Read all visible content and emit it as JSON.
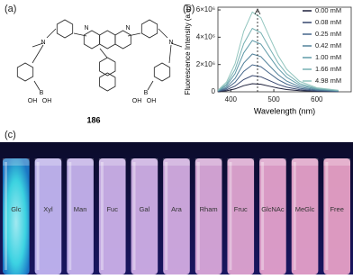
{
  "panels": {
    "a": "(a)",
    "b": "(b)",
    "c": "(c)"
  },
  "structure": {
    "compound": "186",
    "atoms": [
      "N",
      "N",
      "N",
      "N",
      "B",
      "B",
      "OH",
      "OH",
      "OH",
      "OH"
    ]
  },
  "chart_data": {
    "type": "line",
    "xlabel": "Wavelength (nm)",
    "ylabel": "Fluorescence Intensity (a.u.)",
    "x": [
      370,
      390,
      410,
      430,
      450,
      470,
      490,
      510,
      530,
      560,
      600,
      650
    ],
    "xlim": [
      370,
      680
    ],
    "ylim": [
      0,
      6200000
    ],
    "xticks": [
      400,
      500,
      600
    ],
    "yticks": [
      0,
      {
        "value": 2000000,
        "label": "2×10⁶"
      },
      {
        "value": 4000000,
        "label": "4×10⁶"
      },
      {
        "value": 6000000,
        "label": "6×10⁶"
      }
    ],
    "series": [
      {
        "name": "0.00 mM",
        "color": "#1c1f3a",
        "values": [
          12000,
          72000,
          210000,
          450000,
          594000,
          552000,
          408000,
          270000,
          168000,
          78000,
          30000,
          12000
        ]
      },
      {
        "name": "0.08 mM",
        "color": "#36466e",
        "values": [
          24000,
          144000,
          420000,
          900000,
          1188000,
          1104000,
          816000,
          540000,
          336000,
          156000,
          60000,
          24000
        ]
      },
      {
        "name": "0.25 mM",
        "color": "#45668a",
        "values": [
          40000,
          240000,
          700000,
          1500000,
          1980000,
          1840000,
          1360000,
          900000,
          560000,
          260000,
          100000,
          40000
        ]
      },
      {
        "name": "0.42 mM",
        "color": "#52829b",
        "values": [
          56000,
          336000,
          980000,
          2100000,
          2772000,
          2576000,
          1904000,
          1260000,
          784000,
          364000,
          140000,
          56000
        ]
      },
      {
        "name": "1.00 mM",
        "color": "#5f9aa8",
        "values": [
          76000,
          456000,
          1330000,
          2850000,
          3762000,
          3496000,
          2584000,
          1710000,
          1064000,
          494000,
          190000,
          76000
        ]
      },
      {
        "name": "1.66 mM",
        "color": "#76b0b2",
        "values": [
          94000,
          564000,
          1645000,
          3525000,
          4653000,
          4324000,
          3196000,
          2115000,
          1316000,
          611000,
          235000,
          94000
        ]
      },
      {
        "name": "4.98 mM",
        "color": "#93c6bf",
        "values": [
          118000,
          708000,
          2065000,
          4425000,
          5841000,
          5428000,
          4012000,
          2655000,
          1652000,
          767000,
          295000,
          118000
        ]
      }
    ]
  },
  "photo": {
    "vials": [
      {
        "label": "Glc",
        "color": "#4fe6ef"
      },
      {
        "label": "Xyl",
        "color": "#c8bbf6"
      },
      {
        "label": "Man",
        "color": "#cbb7f2"
      },
      {
        "label": "Fuc",
        "color": "#d1b5ee"
      },
      {
        "label": "Gal",
        "color": "#d5b3ea"
      },
      {
        "label": "Ara",
        "color": "#d9b1e6"
      },
      {
        "label": "Rham",
        "color": "#e0addd"
      },
      {
        "label": "Fruc",
        "color": "#e6a9d5"
      },
      {
        "label": "GlcNAc",
        "color": "#eaa6d0"
      },
      {
        "label": "MeGlc",
        "color": "#eca5cd"
      },
      {
        "label": "Free",
        "color": "#eea5ca"
      }
    ]
  }
}
